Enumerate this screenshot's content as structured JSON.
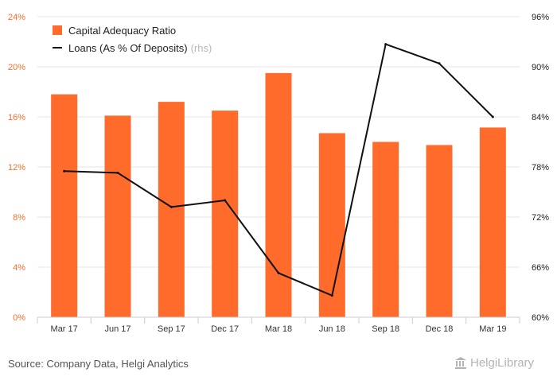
{
  "chart_data": {
    "type": "bar",
    "categories": [
      "Mar 17",
      "Jun 17",
      "Sep 17",
      "Dec 17",
      "Mar 18",
      "Jun 18",
      "Sep 18",
      "Dec 18",
      "Mar 19"
    ],
    "series": [
      {
        "name": "Capital Adequacy Ratio",
        "type": "bar",
        "axis": "left",
        "values": [
          17.8,
          16.1,
          17.2,
          16.5,
          19.5,
          14.7,
          14.0,
          13.75,
          15.15
        ]
      },
      {
        "name": "Loans (As % Of Deposits)",
        "name_suffix": "(rhs)",
        "type": "line",
        "axis": "right",
        "values": [
          77.5,
          77.3,
          73.2,
          74.0,
          65.3,
          62.6,
          92.7,
          90.4,
          84.0
        ]
      }
    ],
    "y_left": {
      "min": 0,
      "max": 24,
      "ticks": [
        0,
        4,
        8,
        12,
        16,
        20,
        24
      ],
      "tick_labels": [
        "0%",
        "4%",
        "8%",
        "12%",
        "16%",
        "20%",
        "24%"
      ]
    },
    "y_right": {
      "min": 60,
      "max": 96,
      "ticks": [
        60,
        66,
        72,
        78,
        84,
        90,
        96
      ],
      "tick_labels": [
        "60%",
        "66%",
        "72%",
        "78%",
        "84%",
        "90%",
        "96%"
      ]
    },
    "legend_position": "top-left",
    "grid": true,
    "colors": {
      "bar": "#ff6b2b",
      "line": "#111111",
      "left_axis_text": "#ff6b2b",
      "right_axis_text": "#222222",
      "grid": "#e6e6e6"
    }
  },
  "footer": {
    "source": "Source: Company Data, Helgi Analytics",
    "logo_text": "HelgiLibrary",
    "logo_icon": "library-building-icon"
  }
}
